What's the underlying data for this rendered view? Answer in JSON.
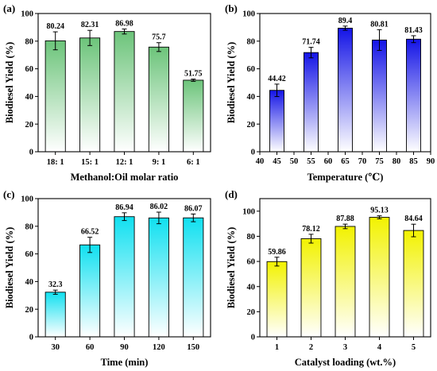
{
  "figure": {
    "background": "#ffffff"
  },
  "chart_data": [
    {
      "panel": "(a)",
      "type": "bar",
      "title": "",
      "xlabel": "Methanol:Oil molar ratio",
      "ylabel": "Biodiesel Yield (%)",
      "ylim": [
        0,
        100
      ],
      "yticks": [
        0,
        20,
        40,
        60,
        80,
        100
      ],
      "xaxis": "categorical",
      "categories": [
        "18: 1",
        "15: 1",
        "12: 1",
        "9: 1",
        "6: 1"
      ],
      "values": [
        80.24,
        82.31,
        86.98,
        75.7,
        51.75
      ],
      "value_labels": [
        "80.24",
        "82.31",
        "86.98",
        "75.7",
        "51.75"
      ],
      "errors": [
        6.5,
        5.5,
        1.8,
        3.2,
        0.8
      ],
      "color_top": "#6cc47a",
      "color_bottom": "#ffffff",
      "grid": false,
      "legend": "none"
    },
    {
      "panel": "(b)",
      "type": "bar",
      "title": "",
      "xlabel": "Temperature (℃)",
      "ylabel": "Biodiesel Yield (%)",
      "ylim": [
        0,
        100
      ],
      "yticks": [
        0,
        20,
        40,
        60,
        80,
        100
      ],
      "xaxis": "numeric",
      "xlim": [
        40,
        90
      ],
      "xticks": [
        40,
        45,
        50,
        55,
        60,
        65,
        70,
        75,
        80,
        85,
        90
      ],
      "x": [
        45,
        55,
        65,
        75,
        85
      ],
      "bar_width": 4.2,
      "values": [
        44.42,
        71.74,
        89.4,
        80.81,
        81.43
      ],
      "value_labels": [
        "44.42",
        "71.74",
        "89.4",
        "80.81",
        "81.43"
      ],
      "errors": [
        4.5,
        3.8,
        1.5,
        7.5,
        2.5
      ],
      "color_top": "#1414e6",
      "color_bottom": "#ffffff",
      "grid": false,
      "legend": "none"
    },
    {
      "panel": "(c)",
      "type": "bar",
      "title": "",
      "xlabel": "Time (min)",
      "ylabel": "Biodiesel Yield (%)",
      "ylim": [
        0,
        100
      ],
      "yticks": [
        0,
        20,
        40,
        60,
        80,
        100
      ],
      "xaxis": "categorical",
      "categories": [
        "30",
        "60",
        "90",
        "120",
        "150"
      ],
      "values": [
        32.3,
        66.52,
        86.94,
        86.02,
        86.07
      ],
      "value_labels": [
        "32.3",
        "66.52",
        "86.94",
        "86.02",
        "86.07"
      ],
      "errors": [
        1.5,
        5.5,
        2.8,
        4.2,
        2.8
      ],
      "color_top": "#10e0f0",
      "color_bottom": "#ffffff",
      "grid": false,
      "legend": "none"
    },
    {
      "panel": "(d)",
      "type": "bar",
      "title": "",
      "xlabel": "Catalyst loading (wt.%)",
      "ylabel": "Biodiesel Yield (%)",
      "ylim": [
        0,
        110
      ],
      "yticks": [
        0,
        20,
        40,
        60,
        80,
        100
      ],
      "xaxis": "categorical",
      "categories": [
        "1",
        "2",
        "3",
        "4",
        "5"
      ],
      "values": [
        59.86,
        78.12,
        87.88,
        95.13,
        84.64
      ],
      "value_labels": [
        "59.86",
        "78.12",
        "87.88",
        "95.13",
        "84.64"
      ],
      "errors": [
        3.5,
        3.5,
        1.8,
        1.2,
        5.0
      ],
      "color_top": "#f2f200",
      "color_bottom": "#ffffff",
      "grid": false,
      "legend": "none"
    }
  ]
}
